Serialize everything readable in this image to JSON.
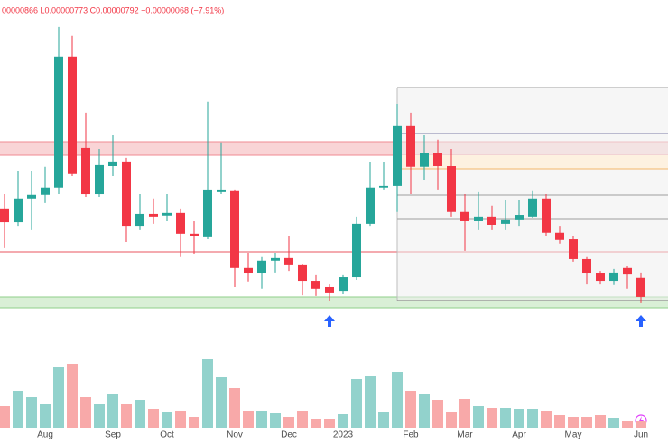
{
  "chart_data": {
    "type": "candlestick",
    "header": "00000866  L0.00000773  C0.00000792  −0.00000068 (−7.91%)",
    "categories": [
      null,
      null,
      null,
      "Aug",
      null,
      null,
      null,
      null,
      "Sep",
      null,
      null,
      null,
      "Oct",
      null,
      null,
      null,
      null,
      "Nov",
      null,
      null,
      null,
      "Dec",
      null,
      null,
      null,
      "2023",
      null,
      null,
      null,
      null,
      "Feb",
      null,
      null,
      null,
      "Mar",
      null,
      null,
      null,
      "Apr",
      null,
      null,
      null,
      "May",
      null,
      null,
      null,
      null,
      "Jun"
    ],
    "open": [
      1.058e-05,
      1.019e-05,
      1.091e-05,
      1.102e-05,
      1.124e-05,
      1.521e-05,
      1.244e-05,
      1.104e-05,
      1.189e-05,
      1.203e-05,
      1.008e-05,
      1.044e-05,
      1.039e-05,
      1.047e-05,
      9.84e-06,
      9.73e-06,
      1.11e-05,
      1.113e-05,
      8.8e-06,
      8.63e-06,
      9.02e-06,
      9.1e-06,
      8.88e-06,
      8.41e-06,
      8.22e-06,
      8.08e-06,
      8.52e-06,
      1.014e-05,
      1.124e-05,
      1.129e-05,
      1.31e-05,
      1.187e-05,
      1.23e-05,
      1.189e-05,
      1.05e-05,
      1.022e-05,
      1.036e-05,
      1.014e-05,
      1.025e-05,
      1.036e-05,
      1.091e-05,
      9.87e-06,
      9.67e-06,
      9.07e-06,
      8.63e-06,
      8.41e-06,
      8.8e-06,
      8.5e-06
    ],
    "high": [
      1.104e-05,
      1.173e-05,
      1.173e-05,
      1.187e-05,
      1.611e-05,
      1.584e-05,
      1.351e-05,
      1.241e-05,
      1.282e-05,
      1.214e-05,
      1.104e-05,
      1.091e-05,
      1.104e-05,
      1.058e-05,
      1.022e-05,
      1.384e-05,
      1.261e-05,
      1.118e-05,
      9.26e-06,
      9.13e-06,
      9.26e-06,
      9.76e-06,
      8.93e-06,
      8.58e-06,
      8.3e-06,
      8.58e-06,
      1.036e-05,
      1.2e-05,
      1.2e-05,
      1.378e-05,
      1.351e-05,
      1.282e-05,
      1.269e-05,
      1.241e-05,
      1.104e-05,
      1.11e-05,
      1.069e-05,
      1.085e-05,
      1.085e-05,
      1.113e-05,
      1.104e-05,
      1.008e-05,
      9.76e-06,
      9.13e-06,
      8.71e-06,
      8.77e-06,
      8.85e-06,
      8.66e-06
    ],
    "low": [
      9.4e-06,
      1.008e-05,
      9.95e-06,
      1.077e-05,
      1.104e-05,
      1.159e-05,
      1.096e-05,
      1.096e-05,
      1.159e-05,
      9.59e-06,
      9.95e-06,
      1.014e-05,
      1.022e-05,
      9.13e-06,
      9.21e-06,
      9.67e-06,
      1.104e-05,
      8.22e-06,
      8.39e-06,
      8.17e-06,
      8.66e-06,
      8.71e-06,
      7.97e-06,
      7.95e-06,
      7.81e-06,
      8e-06,
      8.44e-06,
      1.008e-05,
      1.118e-05,
      1.05e-05,
      1.104e-05,
      1.146e-05,
      1.118e-05,
      1.036e-05,
      9.32e-06,
      9.95e-06,
      9.95e-06,
      9.95e-06,
      1.008e-05,
      1.03e-05,
      9.76e-06,
      9.54e-06,
      8.99e-06,
      8.3e-06,
      8.3e-06,
      8.28e-06,
      8.17e-06,
      7.73e-06
    ],
    "close": [
      1.019e-05,
      1.091e-05,
      1.102e-05,
      1.124e-05,
      1.521e-05,
      1.165e-05,
      1.104e-05,
      1.192e-05,
      1.203e-05,
      1.008e-05,
      1.044e-05,
      1.036e-05,
      1.047e-05,
      9.84e-06,
      9.76e-06,
      1.118e-05,
      1.118e-05,
      8.8e-06,
      8.63e-06,
      9.02e-06,
      9.1e-06,
      8.88e-06,
      8.41e-06,
      8.17e-06,
      8.03e-06,
      8.52e-06,
      1.014e-05,
      1.124e-05,
      1.129e-05,
      1.31e-05,
      1.187e-05,
      1.23e-05,
      1.189e-05,
      1.05e-05,
      1.022e-05,
      1.036e-05,
      1.011e-05,
      1.025e-05,
      1.041e-05,
      1.091e-05,
      9.87e-06,
      9.65e-06,
      9.07e-06,
      8.63e-06,
      8.41e-06,
      8.66e-06,
      8.6e-06,
      7.92e-06
    ],
    "ylim": [
      7.48e-06,
      1.693e-05
    ],
    "up_color": "#26a69a",
    "down_color": "#f23645",
    "volume": {
      "values": [
        24,
        41,
        34,
        26,
        67,
        71,
        34,
        26,
        37,
        26,
        31,
        21,
        17,
        19,
        12,
        76,
        56,
        44,
        19,
        19,
        16,
        12,
        19,
        10,
        10,
        15,
        54,
        57,
        17,
        62,
        41,
        37,
        31,
        18,
        32,
        24,
        22,
        22,
        21,
        21,
        19,
        14,
        12,
        12,
        14,
        11,
        8,
        8
      ],
      "ylim": [
        0,
        100
      ],
      "up_color": "#92d2cc",
      "down_color": "#f8a9a9"
    }
  }
}
